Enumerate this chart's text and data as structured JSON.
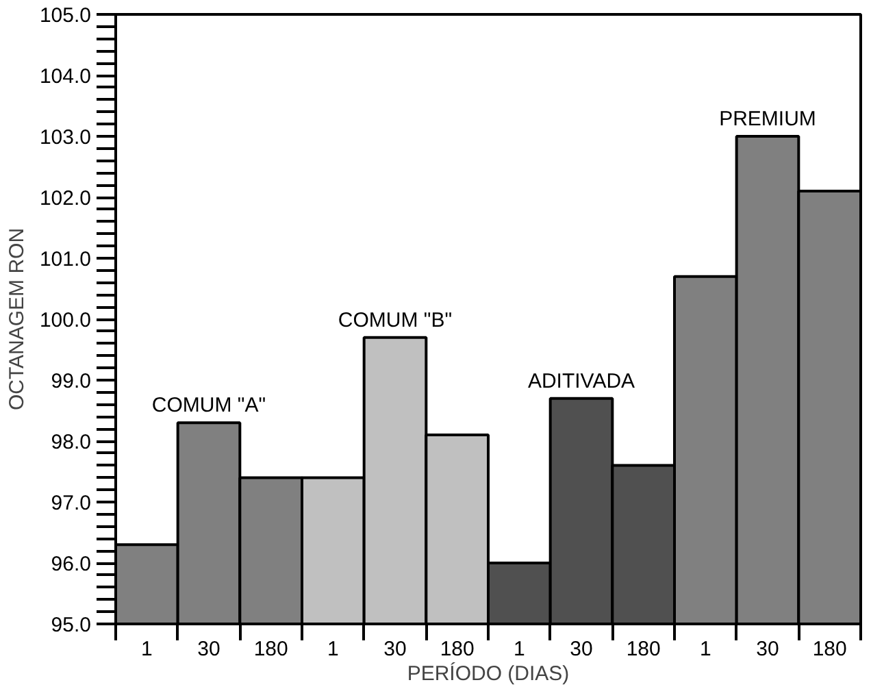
{
  "chart_data": {
    "type": "bar",
    "categories": [
      "1",
      "30",
      "180",
      "1",
      "30",
      "180",
      "1",
      "30",
      "180",
      "1",
      "30",
      "180"
    ],
    "values": [
      96.3,
      98.3,
      97.4,
      97.4,
      99.7,
      98.1,
      96.0,
      98.7,
      97.6,
      100.7,
      103.0,
      102.1
    ],
    "colors": [
      "#808080",
      "#808080",
      "#808080",
      "#c0c0c0",
      "#c0c0c0",
      "#c0c0c0",
      "#505050",
      "#505050",
      "#505050",
      "#808080",
      "#808080",
      "#808080"
    ],
    "annotations": [
      "COMUM \"A\"",
      "COMUM \"B\"",
      "ADITIVADA",
      "PREMIUM"
    ],
    "xlabel": "PERÍODO (DIAS)",
    "ylabel": "OCTANAGEM RON",
    "ylim": [
      95,
      105
    ],
    "yticks": [
      {
        "value": 95,
        "label": "95.0"
      },
      {
        "value": 95.2,
        "label": null
      },
      {
        "value": 95.4,
        "label": null
      },
      {
        "value": 95.6,
        "label": null
      },
      {
        "value": 95.8,
        "label": null
      },
      {
        "value": 96,
        "label": "96.0"
      },
      {
        "value": 96.2,
        "label": null
      },
      {
        "value": 96.4,
        "label": null
      },
      {
        "value": 96.6,
        "label": null
      },
      {
        "value": 96.8,
        "label": null
      },
      {
        "value": 97,
        "label": "97.0"
      },
      {
        "value": 97.2,
        "label": null
      },
      {
        "value": 97.4,
        "label": null
      },
      {
        "value": 97.6,
        "label": null
      },
      {
        "value": 97.8,
        "label": null
      },
      {
        "value": 98,
        "label": "98.0"
      },
      {
        "value": 98.2,
        "label": null
      },
      {
        "value": 98.4,
        "label": null
      },
      {
        "value": 98.6,
        "label": null
      },
      {
        "value": 98.8,
        "label": null
      },
      {
        "value": 99,
        "label": "99.0"
      },
      {
        "value": 99.2,
        "label": null
      },
      {
        "value": 99.4,
        "label": null
      },
      {
        "value": 99.6,
        "label": null
      },
      {
        "value": 99.8,
        "label": null
      },
      {
        "value": 100,
        "label": "100.0"
      },
      {
        "value": 100.2,
        "label": null
      },
      {
        "value": 100.4,
        "label": null
      },
      {
        "value": 100.6,
        "label": null
      },
      {
        "value": 100.8,
        "label": null
      },
      {
        "value": 101,
        "label": "101.0"
      },
      {
        "value": 101.2,
        "label": null
      },
      {
        "value": 101.4,
        "label": null
      },
      {
        "value": 101.6,
        "label": null
      },
      {
        "value": 101.8,
        "label": null
      },
      {
        "value": 102,
        "label": "102.0"
      },
      {
        "value": 102.2,
        "label": null
      },
      {
        "value": 102.4,
        "label": null
      },
      {
        "value": 102.6,
        "label": null
      },
      {
        "value": 102.8,
        "label": null
      },
      {
        "value": 103,
        "label": "103.0"
      },
      {
        "value": 103.2,
        "label": null
      },
      {
        "value": 103.4,
        "label": null
      },
      {
        "value": 103.6,
        "label": null
      },
      {
        "value": 103.8,
        "label": null
      },
      {
        "value": 104,
        "label": "104.0"
      },
      {
        "value": 104.2,
        "label": null
      },
      {
        "value": 104.4,
        "label": null
      },
      {
        "value": 104.6,
        "label": null
      },
      {
        "value": 104.8,
        "label": null
      },
      {
        "value": 105,
        "label": "105.0"
      }
    ],
    "grid": false
  }
}
